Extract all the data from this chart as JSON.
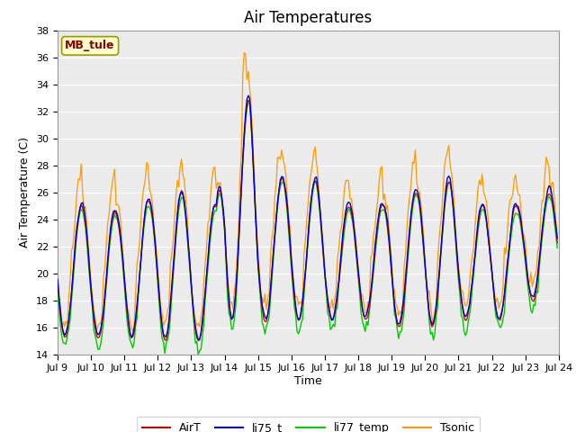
{
  "title": "Air Temperatures",
  "xlabel": "Time",
  "ylabel": "Air Temperature (C)",
  "ylim": [
    14,
    38
  ],
  "yticks": [
    14,
    16,
    18,
    20,
    22,
    24,
    26,
    28,
    30,
    32,
    34,
    36,
    38
  ],
  "xlim": [
    9,
    24
  ],
  "xtick_positions": [
    9,
    10,
    11,
    12,
    13,
    14,
    15,
    16,
    17,
    18,
    19,
    20,
    21,
    22,
    23,
    24
  ],
  "xtick_labels": [
    "Jul 9",
    "Jul 10",
    "Jul 11",
    "Jul 12",
    "Jul 13",
    "Jul 14",
    "Jul 15",
    "Jul 16",
    "Jul 17",
    "Jul 18",
    "Jul 19",
    "Jul 20",
    "Jul 21",
    "Jul 22",
    "Jul 23",
    "Jul 24"
  ],
  "station_label": "MB_tule",
  "colors": {
    "AirT": "#cc0000",
    "li75_t": "#0000cc",
    "li77_temp": "#00cc00",
    "Tsonic": "#ff9900"
  },
  "bg_color": "#ebebeb",
  "grid_color": "#ffffff",
  "title_fontsize": 12,
  "axis_fontsize": 9,
  "tick_fontsize": 8,
  "legend_fontsize": 9
}
